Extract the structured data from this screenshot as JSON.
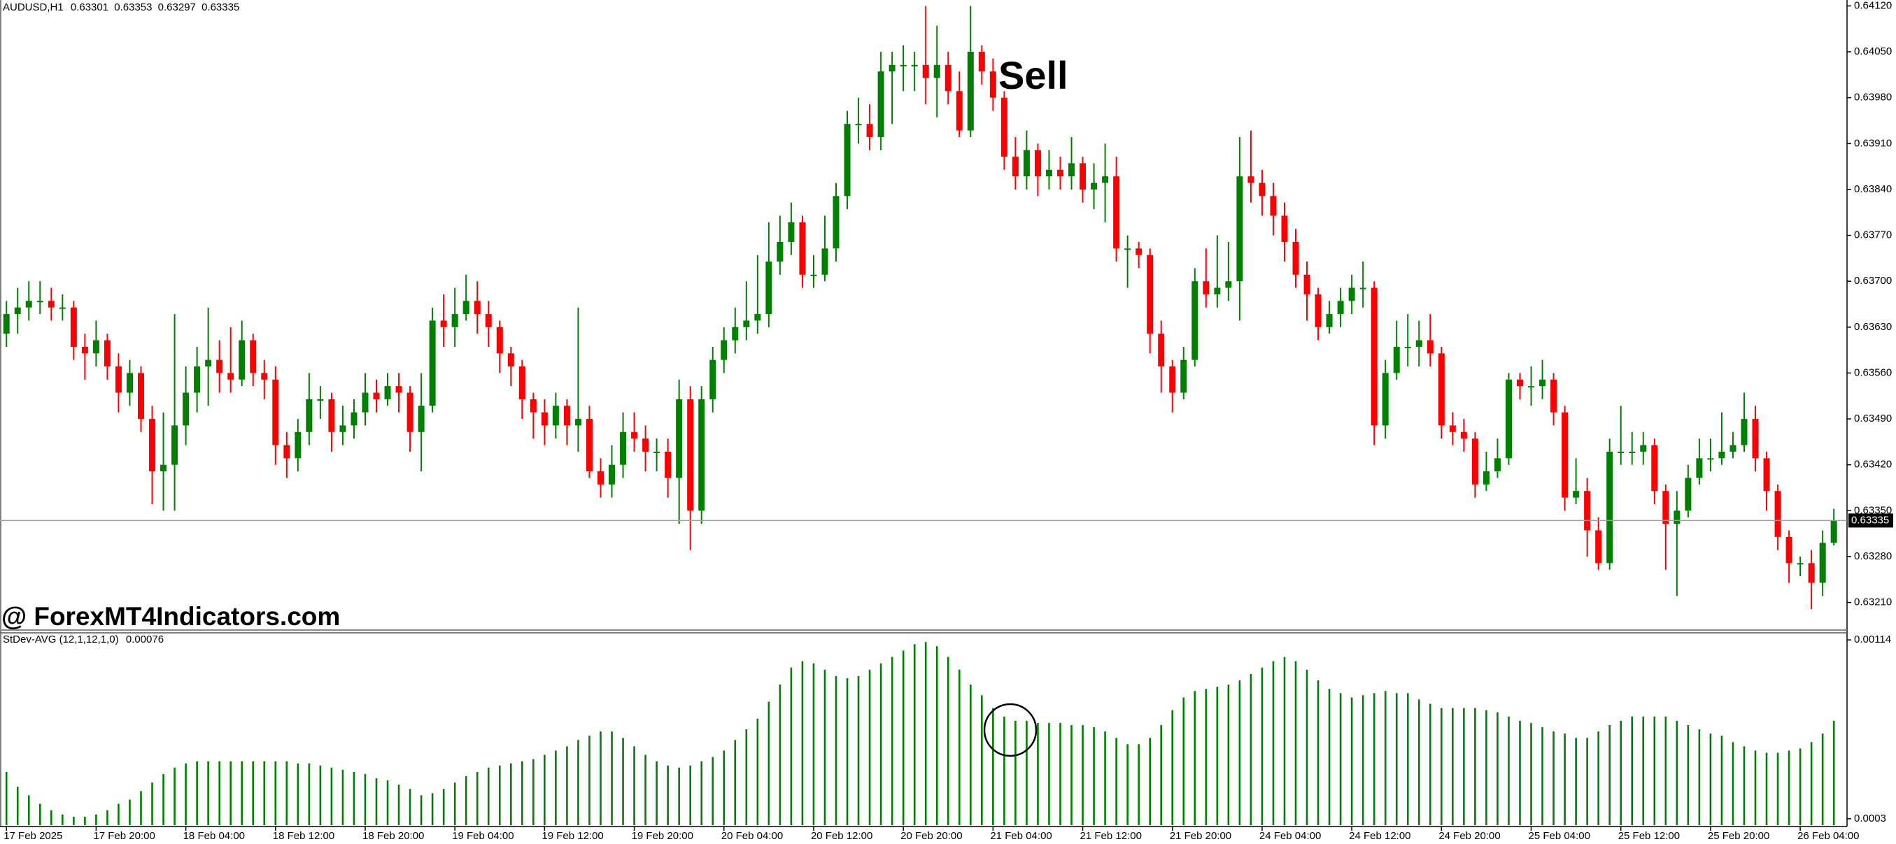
{
  "chart_data": [
    {
      "type": "candlestick",
      "symbol": "AUDUSD,H1",
      "sell_label": "Sell",
      "watermark": "@ ForexMT4Indicators.com",
      "up_color": "#008000",
      "down_color": "#ff0000",
      "categories": [
        "17 Feb 2025",
        null,
        null,
        null,
        null,
        null,
        null,
        null,
        "17 Feb 20:00",
        null,
        null,
        null,
        null,
        null,
        null,
        null,
        "18 Feb 04:00",
        null,
        null,
        null,
        null,
        null,
        null,
        null,
        "18 Feb 12:00",
        null,
        null,
        null,
        null,
        null,
        null,
        null,
        "18 Feb 20:00",
        null,
        null,
        null,
        null,
        null,
        null,
        null,
        "19 Feb 04:00",
        null,
        null,
        null,
        null,
        null,
        null,
        null,
        "19 Feb 12:00",
        null,
        null,
        null,
        null,
        null,
        null,
        null,
        "19 Feb 20:00",
        null,
        null,
        null,
        null,
        null,
        null,
        null,
        "20 Feb 04:00",
        null,
        null,
        null,
        null,
        null,
        null,
        null,
        "20 Feb 12:00",
        null,
        null,
        null,
        null,
        null,
        null,
        null,
        "20 Feb 20:00",
        null,
        null,
        null,
        null,
        null,
        null,
        null,
        "21 Feb 04:00",
        null,
        null,
        null,
        null,
        null,
        null,
        null,
        "21 Feb 12:00",
        null,
        null,
        null,
        null,
        null,
        null,
        null,
        "21 Feb 20:00",
        null,
        null,
        null,
        null,
        null,
        null,
        null,
        "24 Feb 04:00",
        null,
        null,
        null,
        null,
        null,
        null,
        null,
        "24 Feb 12:00",
        null,
        null,
        null,
        null,
        null,
        null,
        null,
        "24 Feb 20:00",
        null,
        null,
        null,
        null,
        null,
        null,
        null,
        "25 Feb 04:00",
        null,
        null,
        null,
        null,
        null,
        null,
        null,
        "25 Feb 12:00",
        null,
        null,
        null,
        null,
        null,
        null,
        null,
        "25 Feb 20:00",
        null,
        null,
        null,
        null,
        null,
        null,
        null,
        "26 Feb 04:00",
        null,
        null,
        null
      ],
      "open": [
        0.6362,
        0.6365,
        0.6366,
        0.6367,
        0.6367,
        0.6366,
        0.6366,
        0.636,
        0.6359,
        0.6361,
        0.6357,
        0.6353,
        0.6356,
        0.6349,
        0.6341,
        0.6342,
        0.6348,
        0.6353,
        0.6357,
        0.6358,
        0.6356,
        0.6355,
        0.6361,
        0.6356,
        0.6355,
        0.6345,
        0.6343,
        0.6347,
        0.6352,
        0.6352,
        0.6347,
        0.6348,
        0.635,
        0.6353,
        0.6352,
        0.6354,
        0.6353,
        0.6347,
        0.6351,
        0.6364,
        0.6363,
        0.6365,
        0.6367,
        0.6365,
        0.6363,
        0.6359,
        0.6357,
        0.6352,
        0.635,
        0.6348,
        0.6351,
        0.6348,
        0.6349,
        0.6341,
        0.6339,
        0.6342,
        0.6347,
        0.6346,
        0.6344,
        0.6344,
        0.634,
        0.6352,
        0.6335,
        0.6352,
        0.6358,
        0.6361,
        0.6363,
        0.6364,
        0.6365,
        0.6373,
        0.6376,
        0.6379,
        0.6371,
        0.6371,
        0.6375,
        0.6383,
        0.6394,
        0.6394,
        0.6392,
        0.6402,
        0.6403,
        0.6403,
        0.6403,
        0.6401,
        0.6403,
        0.6399,
        0.6393,
        0.6405,
        0.6402,
        0.6398,
        0.6389,
        0.6386,
        0.639,
        0.6386,
        0.6387,
        0.6386,
        0.6388,
        0.6384,
        0.6385,
        0.6386,
        0.6375,
        0.6375,
        0.6374,
        0.6362,
        0.6357,
        0.6353,
        0.6358,
        0.637,
        0.6368,
        0.6369,
        0.637,
        0.6386,
        0.6385,
        0.6383,
        0.638,
        0.6376,
        0.6371,
        0.6368,
        0.6363,
        0.6365,
        0.6367,
        0.6369,
        0.6369,
        0.6348,
        0.6356,
        0.636,
        0.636,
        0.6361,
        0.6359,
        0.6348,
        0.6347,
        0.6346,
        0.6339,
        0.6341,
        0.6343,
        0.6355,
        0.6354,
        0.6354,
        0.6355,
        0.635,
        0.6337,
        0.6338,
        0.6332,
        0.6327,
        0.6344,
        0.6344,
        0.6344,
        0.6345,
        0.6338,
        0.6333,
        0.6335,
        0.634,
        0.6343,
        0.6343,
        0.6344,
        0.6345,
        0.6349,
        0.6343,
        0.6338,
        0.6331,
        0.6327,
        0.6327,
        0.6324,
        0.63301
      ],
      "high": [
        0.6367,
        0.6369,
        0.637,
        0.637,
        0.6369,
        0.6368,
        0.6367,
        0.6362,
        0.6364,
        0.6362,
        0.6359,
        0.6358,
        0.6357,
        0.6351,
        0.635,
        0.6365,
        0.6357,
        0.636,
        0.6366,
        0.6361,
        0.6363,
        0.6364,
        0.6362,
        0.6358,
        0.6357,
        0.6347,
        0.6349,
        0.6356,
        0.6354,
        0.6353,
        0.6351,
        0.6352,
        0.6356,
        0.6355,
        0.6356,
        0.6356,
        0.6354,
        0.6356,
        0.6366,
        0.6368,
        0.6369,
        0.6371,
        0.637,
        0.6367,
        0.6364,
        0.636,
        0.6358,
        0.6353,
        0.6352,
        0.6353,
        0.6352,
        0.6366,
        0.6351,
        0.6343,
        0.6345,
        0.635,
        0.635,
        0.6348,
        0.6346,
        0.6346,
        0.6355,
        0.6354,
        0.6354,
        0.636,
        0.6363,
        0.6366,
        0.637,
        0.6374,
        0.6379,
        0.638,
        0.6382,
        0.638,
        0.6374,
        0.638,
        0.6385,
        0.6396,
        0.6398,
        0.6397,
        0.6405,
        0.6405,
        0.6406,
        0.6405,
        0.6412,
        0.6409,
        0.6405,
        0.6402,
        0.6412,
        0.6406,
        0.6404,
        0.6399,
        0.6392,
        0.6393,
        0.6391,
        0.639,
        0.6389,
        0.6392,
        0.6389,
        0.6388,
        0.6391,
        0.6389,
        0.6377,
        0.6376,
        0.6375,
        0.6364,
        0.6358,
        0.636,
        0.6372,
        0.6375,
        0.6377,
        0.6376,
        0.6392,
        0.6393,
        0.6387,
        0.6385,
        0.6382,
        0.6378,
        0.6373,
        0.6369,
        0.6367,
        0.6369,
        0.6371,
        0.6373,
        0.637,
        0.6358,
        0.6364,
        0.6365,
        0.6364,
        0.6365,
        0.636,
        0.635,
        0.6349,
        0.6347,
        0.6344,
        0.6346,
        0.6356,
        0.6356,
        0.6357,
        0.6358,
        0.6356,
        0.6351,
        0.6343,
        0.634,
        0.6334,
        0.6346,
        0.6351,
        0.6347,
        0.6347,
        0.6346,
        0.6339,
        0.6338,
        0.6342,
        0.6346,
        0.6346,
        0.635,
        0.6347,
        0.6353,
        0.6351,
        0.6344,
        0.6339,
        0.6332,
        0.6328,
        0.6329,
        0.6332,
        0.63353
      ],
      "low": [
        0.636,
        0.6362,
        0.6364,
        0.6365,
        0.6364,
        0.6364,
        0.6358,
        0.6355,
        0.6357,
        0.6355,
        0.635,
        0.6351,
        0.6347,
        0.6336,
        0.6335,
        0.6335,
        0.6345,
        0.635,
        0.6351,
        0.6353,
        0.6353,
        0.6354,
        0.6354,
        0.6352,
        0.6342,
        0.634,
        0.6341,
        0.6345,
        0.6349,
        0.6344,
        0.6345,
        0.6346,
        0.6348,
        0.635,
        0.6351,
        0.635,
        0.6344,
        0.6341,
        0.635,
        0.636,
        0.636,
        0.6364,
        0.6362,
        0.636,
        0.6356,
        0.6354,
        0.6349,
        0.6346,
        0.6345,
        0.6346,
        0.6345,
        0.6344,
        0.634,
        0.6337,
        0.6337,
        0.634,
        0.6344,
        0.6341,
        0.6341,
        0.6337,
        0.6333,
        0.6329,
        0.6333,
        0.635,
        0.6356,
        0.6359,
        0.6361,
        0.6362,
        0.6363,
        0.6371,
        0.6374,
        0.6369,
        0.6369,
        0.637,
        0.6373,
        0.6381,
        0.6391,
        0.639,
        0.639,
        0.6394,
        0.6399,
        0.6399,
        0.6397,
        0.6395,
        0.6397,
        0.6392,
        0.6392,
        0.64,
        0.6396,
        0.6387,
        0.6384,
        0.6384,
        0.6383,
        0.6384,
        0.6384,
        0.6384,
        0.6382,
        0.6381,
        0.6379,
        0.6373,
        0.6369,
        0.6372,
        0.6359,
        0.6353,
        0.635,
        0.6352,
        0.6357,
        0.6366,
        0.6366,
        0.6367,
        0.6364,
        0.6382,
        0.638,
        0.6377,
        0.6373,
        0.6369,
        0.6364,
        0.6361,
        0.6362,
        0.6363,
        0.6365,
        0.6366,
        0.6345,
        0.6346,
        0.6355,
        0.6357,
        0.6357,
        0.6357,
        0.6346,
        0.6345,
        0.6344,
        0.6337,
        0.6338,
        0.634,
        0.6342,
        0.6352,
        0.6351,
        0.6352,
        0.6348,
        0.6335,
        0.6336,
        0.6328,
        0.6326,
        0.6326,
        0.6342,
        0.6342,
        0.6342,
        0.6336,
        0.6326,
        0.6322,
        0.6334,
        0.6339,
        0.6341,
        0.6342,
        0.6343,
        0.6344,
        0.6341,
        0.6335,
        0.6329,
        0.6324,
        0.6325,
        0.632,
        0.6322,
        0.63297
      ],
      "close": [
        0.6365,
        0.6366,
        0.6367,
        0.6367,
        0.6366,
        0.6366,
        0.636,
        0.6359,
        0.6361,
        0.6357,
        0.6353,
        0.6356,
        0.6349,
        0.6341,
        0.6342,
        0.6348,
        0.6353,
        0.6357,
        0.6358,
        0.6356,
        0.6355,
        0.6361,
        0.6356,
        0.6355,
        0.6345,
        0.6343,
        0.6347,
        0.6352,
        0.6352,
        0.6347,
        0.6348,
        0.635,
        0.6353,
        0.6352,
        0.6354,
        0.6353,
        0.6347,
        0.6351,
        0.6364,
        0.6363,
        0.6365,
        0.6367,
        0.6365,
        0.6363,
        0.6359,
        0.6357,
        0.6352,
        0.635,
        0.6348,
        0.6351,
        0.6348,
        0.6349,
        0.6341,
        0.6339,
        0.6342,
        0.6347,
        0.6346,
        0.6344,
        0.6344,
        0.634,
        0.6352,
        0.6335,
        0.6352,
        0.6358,
        0.6361,
        0.6363,
        0.6364,
        0.6365,
        0.6373,
        0.6376,
        0.6379,
        0.6371,
        0.6371,
        0.6375,
        0.6383,
        0.6394,
        0.6394,
        0.6392,
        0.6402,
        0.6403,
        0.6403,
        0.6403,
        0.6401,
        0.6403,
        0.6399,
        0.6393,
        0.6405,
        0.6402,
        0.6398,
        0.6389,
        0.6386,
        0.639,
        0.6386,
        0.6387,
        0.6386,
        0.6388,
        0.6384,
        0.6385,
        0.6386,
        0.6375,
        0.6375,
        0.6374,
        0.6362,
        0.6357,
        0.6353,
        0.6358,
        0.637,
        0.6368,
        0.6369,
        0.637,
        0.6386,
        0.6385,
        0.6383,
        0.638,
        0.6376,
        0.6371,
        0.6368,
        0.6363,
        0.6365,
        0.6367,
        0.6369,
        0.6369,
        0.6348,
        0.6356,
        0.636,
        0.636,
        0.6361,
        0.6359,
        0.6348,
        0.6347,
        0.6346,
        0.6339,
        0.6341,
        0.6343,
        0.6355,
        0.6354,
        0.6354,
        0.6355,
        0.635,
        0.6337,
        0.6338,
        0.6332,
        0.6327,
        0.6344,
        0.6344,
        0.6344,
        0.6345,
        0.6338,
        0.6333,
        0.6335,
        0.634,
        0.6343,
        0.6343,
        0.6344,
        0.6345,
        0.6349,
        0.6343,
        0.6338,
        0.6331,
        0.6327,
        0.6327,
        0.6324,
        0.63301,
        0.63335
      ],
      "ylim": [
        0.63169,
        0.64129
      ],
      "yticks": [
        {
          "value": 0.6412,
          "label": "0.64120"
        },
        {
          "value": 0.6405,
          "label": "0.64050"
        },
        {
          "value": 0.6398,
          "label": "0.63980"
        },
        {
          "value": 0.6391,
          "label": "0.63910"
        },
        {
          "value": 0.6384,
          "label": "0.63840"
        },
        {
          "value": 0.6377,
          "label": "0.63770"
        },
        {
          "value": 0.637,
          "label": "0.63700"
        },
        {
          "value": 0.6363,
          "label": "0.63630"
        },
        {
          "value": 0.6356,
          "label": "0.63560"
        },
        {
          "value": 0.6349,
          "label": "0.63490"
        },
        {
          "value": 0.6342,
          "label": "0.63420"
        },
        {
          "value": 0.6335,
          "label": "0.63350"
        },
        {
          "value": 0.6328,
          "label": "0.63280"
        },
        {
          "value": 0.6321,
          "label": "0.63210"
        }
      ],
      "grid": false
    },
    {
      "type": "bar",
      "name": "StDev-AVG (12,1,12,1,0)",
      "color": "#008000",
      "values": [
        0.00052,
        0.00045,
        0.00041,
        0.00037,
        0.00034,
        0.00032,
        0.00031,
        0.00031,
        0.00032,
        0.00034,
        0.00037,
        0.00039,
        0.00043,
        0.00047,
        0.00051,
        0.00054,
        0.00056,
        0.00057,
        0.00057,
        0.00057,
        0.00057,
        0.00057,
        0.00057,
        0.00057,
        0.00057,
        0.00057,
        0.00056,
        0.00056,
        0.00055,
        0.00054,
        0.00053,
        0.00052,
        0.00051,
        0.00049,
        0.00048,
        0.00046,
        0.00044,
        0.00041,
        0.00042,
        0.00044,
        0.00047,
        0.0005,
        0.00052,
        0.00054,
        0.00055,
        0.00056,
        0.00057,
        0.00058,
        0.0006,
        0.00062,
        0.00064,
        0.00067,
        0.00069,
        0.00071,
        0.00071,
        0.00068,
        0.00064,
        0.0006,
        0.00057,
        0.00055,
        0.00054,
        0.00055,
        0.00057,
        0.00059,
        0.00062,
        0.00067,
        0.00072,
        0.00077,
        0.00085,
        0.00093,
        0.00101,
        0.00104,
        0.00103,
        0.001,
        0.00097,
        0.00096,
        0.00097,
        0.001,
        0.00103,
        0.00106,
        0.00109,
        0.00112,
        0.00113,
        0.00111,
        0.00106,
        0.001,
        0.00093,
        0.00088,
        0.00082,
        0.00078,
        0.00076,
        0.00076,
        0.00075,
        0.00075,
        0.00075,
        0.00074,
        0.00074,
        0.00073,
        0.00071,
        0.00068,
        0.00065,
        0.00065,
        0.00068,
        0.00074,
        0.00081,
        0.00087,
        0.0009,
        0.00091,
        0.00092,
        0.00093,
        0.00095,
        0.00098,
        0.00101,
        0.00104,
        0.00106,
        0.00104,
        0.001,
        0.00095,
        0.00091,
        0.00089,
        0.00087,
        0.00088,
        0.00089,
        0.0009,
        0.00089,
        0.00089,
        0.00086,
        0.00084,
        0.00082,
        0.00082,
        0.00082,
        0.00082,
        0.00081,
        0.0008,
        0.00078,
        0.00076,
        0.00075,
        0.00073,
        0.00071,
        0.0007,
        0.00068,
        0.00068,
        0.00071,
        0.00074,
        0.00076,
        0.00078,
        0.00078,
        0.00078,
        0.00078,
        0.00076,
        0.00074,
        0.00072,
        0.0007,
        0.00069,
        0.00066,
        0.00064,
        0.00062,
        0.00061,
        0.00061,
        0.00062,
        0.00063,
        0.00066,
        0.0007,
        0.00076
      ],
      "ylim": [
        0.00027,
        0.00117
      ],
      "yticks": [
        0.00114,
        0.0003
      ],
      "grid": false
    }
  ]
}
